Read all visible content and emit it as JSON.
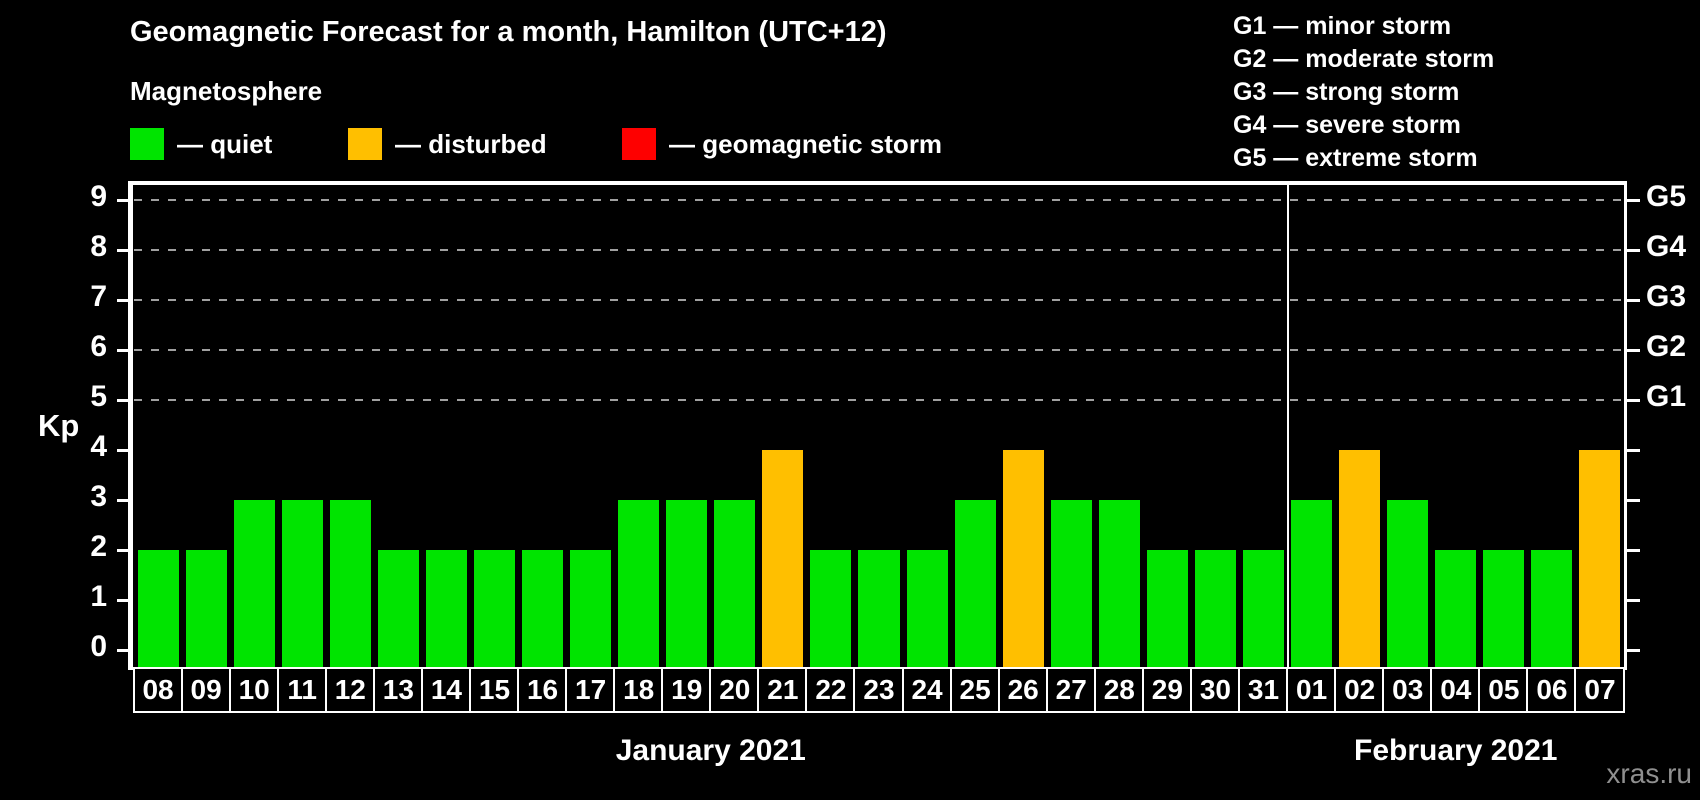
{
  "header": {
    "title": "Geomagnetic Forecast for a month, Hamilton (UTC+12)"
  },
  "legend": {
    "heading": "Magnetosphere",
    "items": [
      {
        "status": "quiet",
        "label": "— quiet"
      },
      {
        "status": "disturbed",
        "label": "— disturbed"
      },
      {
        "status": "storm",
        "label": "— geomagnetic storm"
      }
    ]
  },
  "g_legend": {
    "lines": [
      "G1 — minor storm",
      "G2 — moderate storm",
      "G3 — strong storm",
      "G4 — severe storm",
      "G5 — extreme storm"
    ]
  },
  "colors": {
    "quiet": "#00e400",
    "disturbed": "#ffbf00",
    "storm": "#fe0000",
    "grid": "#a0a0a0",
    "axis": "#ffffff",
    "text": "#ffffff",
    "watermark": "#909090",
    "background": "#000000"
  },
  "watermark": "xras.ru",
  "chart_data": {
    "type": "bar",
    "title": "Geomagnetic Forecast for a month, Hamilton (UTC+12)",
    "xlabel": "",
    "ylabel": "Kp",
    "ylim": [
      0,
      9.6
    ],
    "yticks": [
      0,
      1,
      2,
      3,
      4,
      5,
      6,
      7,
      8,
      9
    ],
    "grid": "dashed horizontal lines at Kp 5..9 only",
    "legend_position": "top-left and top-right",
    "grid_levels": [
      {
        "kp": 5,
        "g": "G1"
      },
      {
        "kp": 6,
        "g": "G2"
      },
      {
        "kp": 7,
        "g": "G3"
      },
      {
        "kp": 8,
        "g": "G4"
      },
      {
        "kp": 9,
        "g": "G5"
      }
    ],
    "categories": [
      "08",
      "09",
      "10",
      "11",
      "12",
      "13",
      "14",
      "15",
      "16",
      "17",
      "18",
      "19",
      "20",
      "21",
      "22",
      "23",
      "24",
      "25",
      "26",
      "27",
      "28",
      "29",
      "30",
      "31",
      "01",
      "02",
      "03",
      "04",
      "05",
      "06",
      "07"
    ],
    "values": [
      2,
      2,
      3,
      3,
      3,
      2,
      2,
      2,
      2,
      2,
      3,
      3,
      3,
      4,
      2,
      2,
      2,
      3,
      4,
      3,
      3,
      2,
      2,
      2,
      3,
      4,
      3,
      2,
      2,
      2,
      4
    ],
    "statuses": [
      "quiet",
      "quiet",
      "quiet",
      "quiet",
      "quiet",
      "quiet",
      "quiet",
      "quiet",
      "quiet",
      "quiet",
      "quiet",
      "quiet",
      "quiet",
      "disturbed",
      "quiet",
      "quiet",
      "quiet",
      "quiet",
      "disturbed",
      "quiet",
      "quiet",
      "quiet",
      "quiet",
      "quiet",
      "quiet",
      "disturbed",
      "quiet",
      "quiet",
      "quiet",
      "quiet",
      "disturbed"
    ],
    "month_groups": [
      {
        "label": "January 2021",
        "count": 24
      },
      {
        "label": "February 2021",
        "count": 7
      }
    ]
  }
}
